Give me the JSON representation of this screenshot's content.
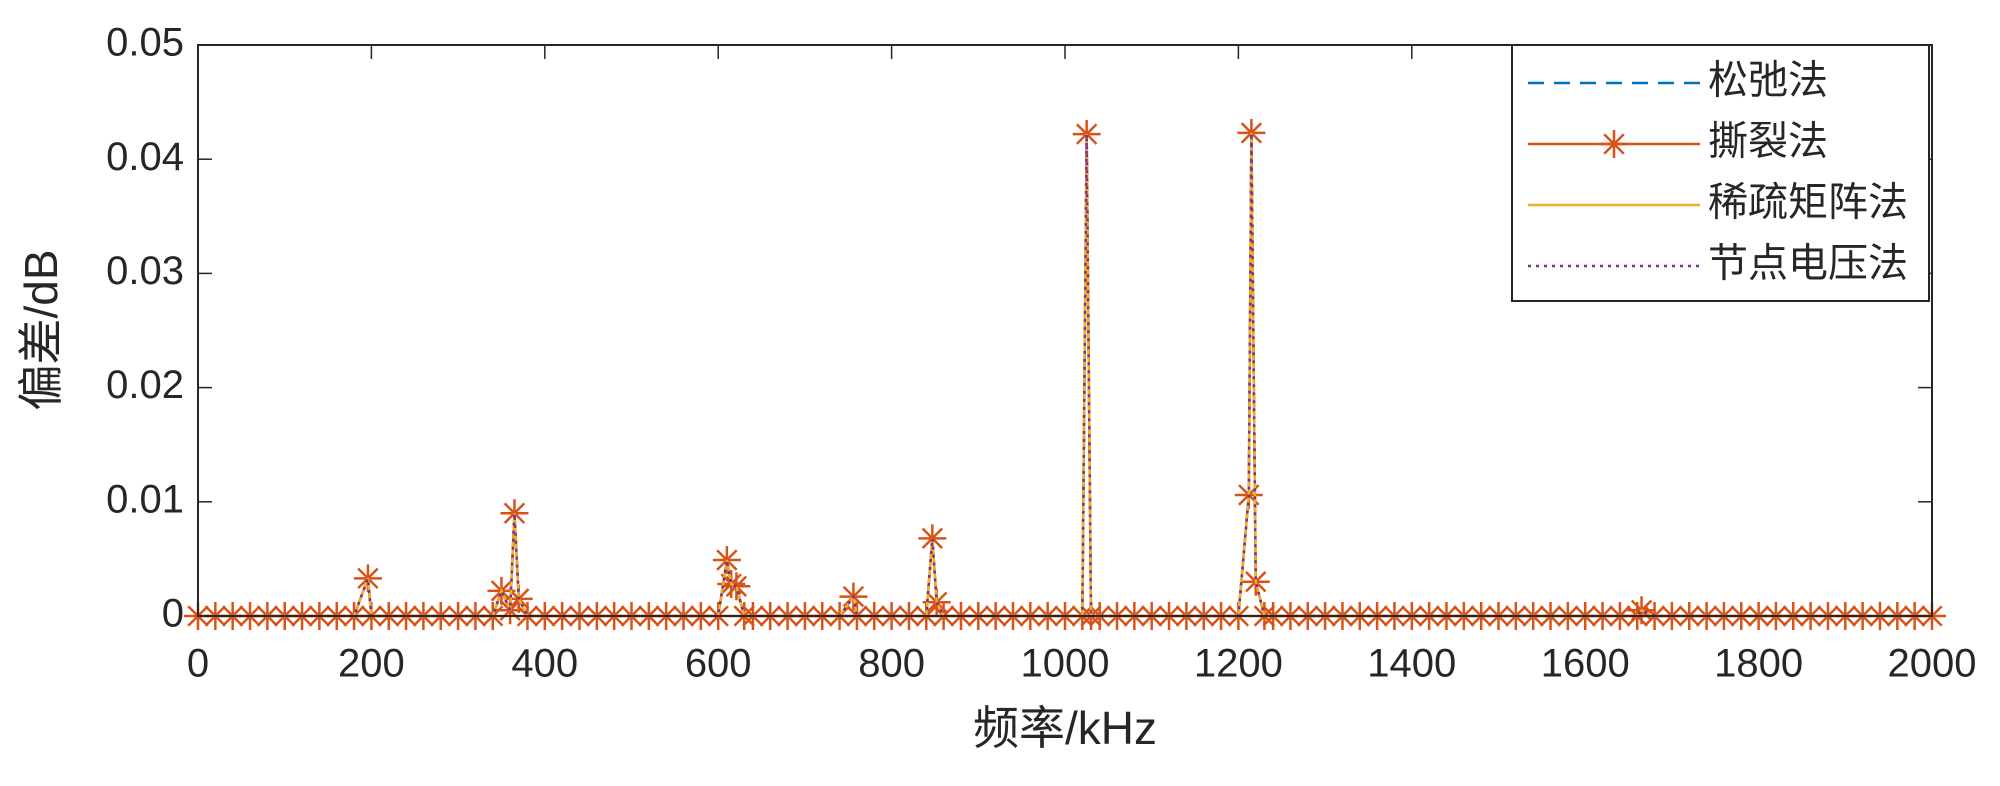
{
  "chart_data": {
    "type": "line",
    "xlabel": "频率/kHz",
    "ylabel": "偏差/dB",
    "xlim": [
      0,
      2000
    ],
    "ylim": [
      0,
      0.05
    ],
    "xticks": [
      0,
      200,
      400,
      600,
      800,
      1000,
      1200,
      1400,
      1600,
      1800,
      2000
    ],
    "yticks": [
      0,
      0.01,
      0.02,
      0.03,
      0.04,
      0.05
    ],
    "legend_loc": "upper right",
    "x": [
      0,
      20,
      40,
      60,
      80,
      100,
      120,
      140,
      160,
      180,
      196,
      200,
      220,
      240,
      260,
      280,
      300,
      320,
      340,
      350,
      360,
      365,
      370,
      380,
      400,
      420,
      440,
      460,
      480,
      500,
      520,
      540,
      560,
      580,
      600,
      610,
      615,
      621,
      630,
      640,
      660,
      680,
      700,
      720,
      740,
      756,
      760,
      780,
      800,
      820,
      840,
      847,
      852,
      860,
      880,
      900,
      920,
      940,
      960,
      980,
      1000,
      1020,
      1025,
      1030,
      1040,
      1060,
      1080,
      1100,
      1120,
      1140,
      1160,
      1180,
      1200,
      1212,
      1215,
      1220,
      1230,
      1240,
      1260,
      1280,
      1300,
      1320,
      1340,
      1360,
      1380,
      1400,
      1420,
      1440,
      1460,
      1480,
      1500,
      1520,
      1540,
      1560,
      1580,
      1600,
      1620,
      1640,
      1660,
      1665,
      1680,
      1700,
      1720,
      1740,
      1760,
      1780,
      1800,
      1820,
      1840,
      1860,
      1880,
      1900,
      1920,
      1940,
      1960,
      1980,
      2000
    ],
    "series": [
      {
        "name": "松弛法",
        "color": "#0072BD",
        "style": "dashed",
        "marker": "none",
        "values": [
          0,
          0,
          0,
          0,
          0,
          0,
          0,
          0,
          0,
          0,
          0.0033,
          0,
          0,
          0,
          0,
          0,
          0,
          0,
          0,
          0.0022,
          0.0005,
          0.009,
          0.0015,
          0,
          0,
          0,
          0,
          0,
          0,
          0,
          0,
          0,
          0,
          0,
          0,
          0.0049,
          0.0028,
          0.0026,
          0,
          0,
          0,
          0,
          0,
          0,
          0,
          0.0017,
          0,
          0,
          0,
          0,
          0,
          0.0068,
          0.0012,
          0,
          0,
          0,
          0,
          0,
          0,
          0,
          0,
          0,
          0.0422,
          0,
          0,
          0,
          0,
          0,
          0,
          0,
          0,
          0,
          0,
          0.0106,
          0.0423,
          0.003,
          0,
          0,
          0,
          0,
          0,
          0,
          0,
          0,
          0,
          0,
          0,
          0,
          0,
          0,
          0,
          0,
          0,
          0,
          0,
          0,
          0,
          0,
          0,
          0.0005,
          0,
          0,
          0,
          0,
          0,
          0,
          0,
          0,
          0,
          0,
          0,
          0,
          0,
          0,
          0,
          0,
          0
        ]
      },
      {
        "name": "撕裂法",
        "color": "#D95319",
        "style": "solid",
        "marker": "asterisk",
        "values": [
          0,
          0,
          0,
          0,
          0,
          0,
          0,
          0,
          0,
          0,
          0.0033,
          0,
          0,
          0,
          0,
          0,
          0,
          0,
          0,
          0.0022,
          0.0005,
          0.009,
          0.0015,
          0,
          0,
          0,
          0,
          0,
          0,
          0,
          0,
          0,
          0,
          0,
          0,
          0.0049,
          0.0028,
          0.0026,
          0,
          0,
          0,
          0,
          0,
          0,
          0,
          0.0017,
          0,
          0,
          0,
          0,
          0,
          0.0068,
          0.0012,
          0,
          0,
          0,
          0,
          0,
          0,
          0,
          0,
          0,
          0.0422,
          0,
          0,
          0,
          0,
          0,
          0,
          0,
          0,
          0,
          0,
          0.0106,
          0.0423,
          0.003,
          0,
          0,
          0,
          0,
          0,
          0,
          0,
          0,
          0,
          0,
          0,
          0,
          0,
          0,
          0,
          0,
          0,
          0,
          0,
          0,
          0,
          0,
          0,
          0.0005,
          0,
          0,
          0,
          0,
          0,
          0,
          0,
          0,
          0,
          0,
          0,
          0,
          0,
          0,
          0,
          0,
          0
        ]
      },
      {
        "name": "稀疏矩阵法",
        "color": "#EDB120",
        "style": "solid",
        "marker": "none",
        "values": [
          0,
          0,
          0,
          0,
          0,
          0,
          0,
          0,
          0,
          0,
          0.0033,
          0,
          0,
          0,
          0,
          0,
          0,
          0,
          0,
          0.0022,
          0.0005,
          0.009,
          0.0015,
          0,
          0,
          0,
          0,
          0,
          0,
          0,
          0,
          0,
          0,
          0,
          0,
          0.0049,
          0.0028,
          0.0026,
          0,
          0,
          0,
          0,
          0,
          0,
          0,
          0.0017,
          0,
          0,
          0,
          0,
          0,
          0.0068,
          0.0012,
          0,
          0,
          0,
          0,
          0,
          0,
          0,
          0,
          0,
          0.0422,
          0,
          0,
          0,
          0,
          0,
          0,
          0,
          0,
          0,
          0,
          0.0106,
          0.0423,
          0.003,
          0,
          0,
          0,
          0,
          0,
          0,
          0,
          0,
          0,
          0,
          0,
          0,
          0,
          0,
          0,
          0,
          0,
          0,
          0,
          0,
          0,
          0,
          0,
          0.0005,
          0,
          0,
          0,
          0,
          0,
          0,
          0,
          0,
          0,
          0,
          0,
          0,
          0,
          0,
          0,
          0,
          0
        ]
      },
      {
        "name": "节点电压法",
        "color": "#7E2F8E",
        "style": "dotted",
        "marker": "none",
        "values": [
          0,
          0,
          0,
          0,
          0,
          0,
          0,
          0,
          0,
          0,
          0.0033,
          0,
          0,
          0,
          0,
          0,
          0,
          0,
          0,
          0.0022,
          0.0005,
          0.009,
          0.0015,
          0,
          0,
          0,
          0,
          0,
          0,
          0,
          0,
          0,
          0,
          0,
          0,
          0.0049,
          0.0028,
          0.0026,
          0,
          0,
          0,
          0,
          0,
          0,
          0,
          0.0017,
          0,
          0,
          0,
          0,
          0,
          0.0068,
          0.0012,
          0,
          0,
          0,
          0,
          0,
          0,
          0,
          0,
          0,
          0.0422,
          0,
          0,
          0,
          0,
          0,
          0,
          0,
          0,
          0,
          0,
          0.0106,
          0.0423,
          0.003,
          0,
          0,
          0,
          0,
          0,
          0,
          0,
          0,
          0,
          0,
          0,
          0,
          0,
          0,
          0,
          0,
          0,
          0,
          0,
          0,
          0,
          0,
          0,
          0.0005,
          0,
          0,
          0,
          0,
          0,
          0,
          0,
          0,
          0,
          0,
          0,
          0,
          0,
          0,
          0,
          0,
          0
        ]
      }
    ]
  }
}
